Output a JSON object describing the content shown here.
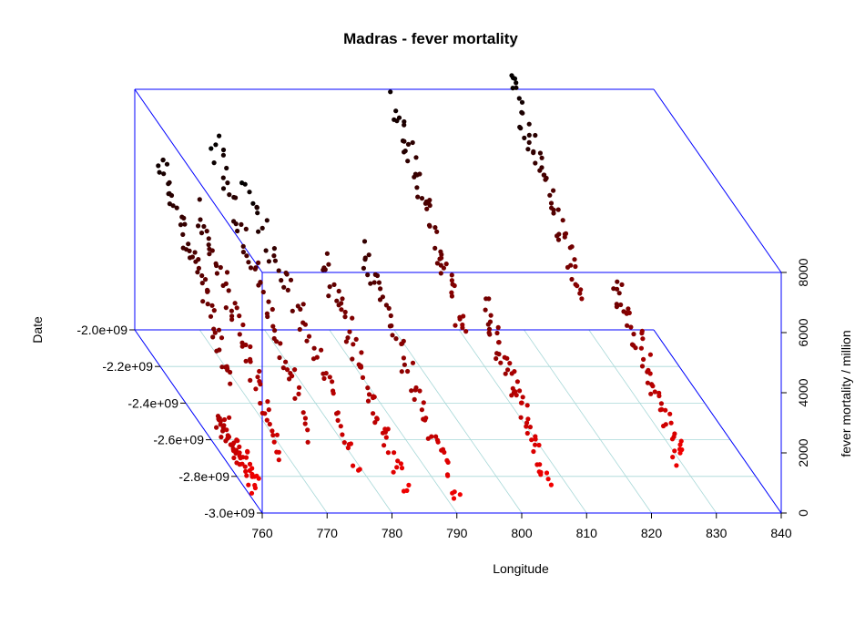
{
  "chart_data": {
    "type": "scatter",
    "projection": "3d-box",
    "title": "Madras - fever mortality",
    "xlabel": "Longitude",
    "ylabel": "Date",
    "zlabel": "fever mortality / million",
    "xlim": [
      760,
      840
    ],
    "ylim": [
      -3000000000.0,
      -2000000000.0
    ],
    "zlim": [
      0,
      8000
    ],
    "x_ticks": [
      "760",
      "770",
      "780",
      "790",
      "800",
      "810",
      "820",
      "830",
      "840"
    ],
    "y_ticks": [
      "-3.0e+09",
      "-2.8e+09",
      "-2.6e+09",
      "-2.4e+09",
      "-2.2e+09",
      "-2.0e+09"
    ],
    "z_ticks": [
      "0",
      "2000",
      "4000",
      "6000",
      "8000"
    ],
    "grid": "floor",
    "box_color": "#0000ff",
    "grid_color": "#a8d8d8",
    "point_color_low": "#ff0000",
    "point_color_high": "#000000",
    "series": [
      {
        "x": 760,
        "y": [
          -2650000000.0,
          -2950000000.0
        ],
        "z": [
          1100,
          700
        ]
      },
      {
        "x": 763,
        "y": [
          -2050000000.0,
          -2600000000.0
        ],
        "z": [
          6200,
          2000
        ]
      },
      {
        "x": 766,
        "y": [
          -2200000000.0,
          -2850000000.0
        ],
        "z": [
          5200,
          1000
        ]
      },
      {
        "x": 772,
        "y": [
          -2000000000.0,
          -2750000000.0
        ],
        "z": [
          6400,
          1200
        ]
      },
      {
        "x": 777,
        "y": [
          -2000000000.0,
          -2900000000.0
        ],
        "z": [
          5000,
          1000
        ]
      },
      {
        "x": 783,
        "y": [
          -2300000000.0,
          -2950000000.0
        ],
        "z": [
          4200,
          500
        ]
      },
      {
        "x": 791,
        "y": [
          -2200000000.0,
          -2950000000.0
        ],
        "z": [
          4000,
          300
        ]
      },
      {
        "x": 799,
        "y": [
          -2050000000.0,
          -2600000000.0
        ],
        "z": [
          7800,
          3600
        ]
      },
      {
        "x": 805,
        "y": [
          -2450000000.0,
          -2950000000.0
        ],
        "z": [
          3500,
          900
        ]
      },
      {
        "x": 818,
        "y": [
          -2000000000.0,
          -2550000000.0
        ],
        "z": [
          8300,
          4600
        ]
      },
      {
        "x": 826,
        "y": [
          -2400000000.0,
          -2950000000.0
        ],
        "z": [
          4200,
          1300
        ]
      }
    ]
  }
}
